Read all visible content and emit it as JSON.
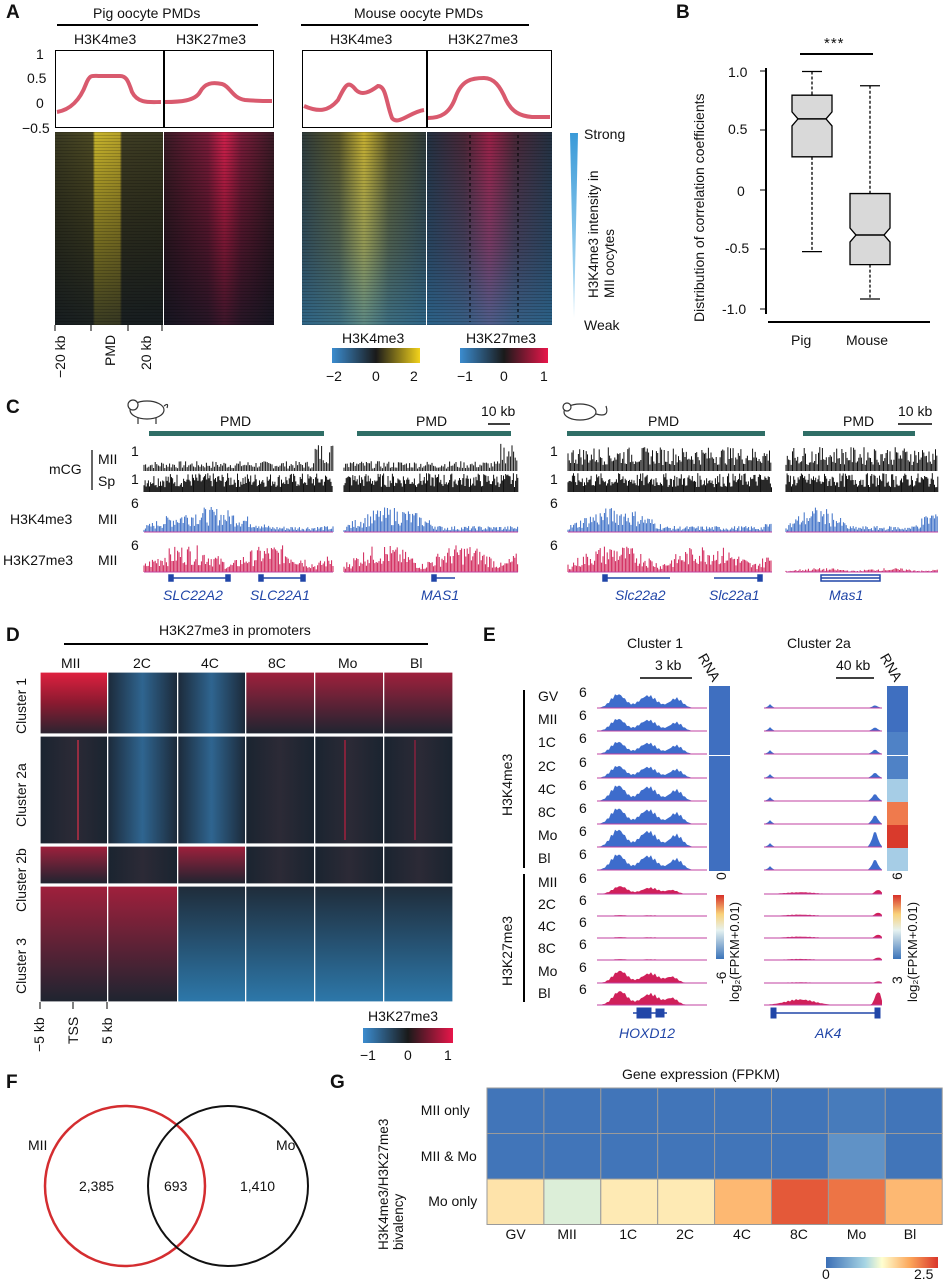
{
  "panels": {
    "A": "A",
    "B": "B",
    "C": "C",
    "D": "D",
    "E": "E",
    "F": "F",
    "G": "G"
  },
  "panelA": {
    "pig_title": "Pig oocyte PMDs",
    "mouse_title": "Mouse oocyte PMDs",
    "mark_k4": "H3K4me3",
    "mark_k27": "H3K27me3",
    "y_ticks": [
      "1",
      "0.5",
      "0",
      "−0.5"
    ],
    "x_labels": [
      "−20 kb",
      "PMD",
      "20 kb"
    ],
    "side_strong": "Strong",
    "side_weak": "Weak",
    "side_axis": "H3K4me3 intensity in MII oocytes",
    "cbar_k4_title": "H3K4me3",
    "cbar_k4_ticks": [
      "−2",
      "0",
      "2"
    ],
    "cbar_k27_title": "H3K27me3",
    "cbar_k27_ticks": [
      "−1",
      "0",
      "1"
    ]
  },
  "panelB": {
    "ylabel": "Distribution of correlation coefficients",
    "y_ticks": [
      "1.0",
      "0.5",
      "0",
      "-0.5",
      "-1.0"
    ],
    "signif": "***",
    "chart_data": {
      "type": "box",
      "categories": [
        "Pig",
        "Mouse"
      ],
      "ylim": [
        -1.1,
        1.1
      ],
      "boxes": [
        {
          "name": "Pig",
          "min": -0.52,
          "q1": 0.28,
          "median": 0.6,
          "q3": 0.8,
          "max": 1.0
        },
        {
          "name": "Mouse",
          "min": -0.92,
          "q1": -0.63,
          "median": -0.38,
          "q3": -0.03,
          "max": 0.88
        }
      ]
    }
  },
  "panelC": {
    "pmd": "PMD",
    "scale": "10 kb",
    "mcg": "mCG",
    "mii": "MII",
    "sp": "Sp",
    "k4": "H3K4me3",
    "k27": "H3K27me3",
    "v1": "1",
    "v6": "6",
    "genes_pig": [
      "SLC22A2",
      "SLC22A1",
      "MAS1"
    ],
    "genes_mouse": [
      "Slc22a2",
      "Slc22a1",
      "Mas1"
    ]
  },
  "panelD": {
    "title": "H3K27me3 in promoters",
    "stages": [
      "MII",
      "2C",
      "4C",
      "8C",
      "Mo",
      "Bl"
    ],
    "clusters": [
      "Cluster 1",
      "Cluster 2a",
      "Cluster 2b",
      "Cluster 3"
    ],
    "x_labels": [
      "−5 kb",
      "TSS",
      "5 kb"
    ],
    "cbar_title": "H3K27me3",
    "cbar_ticks": [
      "−1",
      "0",
      "1"
    ]
  },
  "panelE": {
    "cluster1": "Cluster 1",
    "cluster2a": "Cluster 2a",
    "scale1": "3 kb",
    "scale2": "40 kb",
    "rna": "RNA",
    "k4": "H3K4me3",
    "k27": "H3K27me3",
    "k4_stages": [
      "GV",
      "MII",
      "1C",
      "2C",
      "4C",
      "8C",
      "Mo",
      "Bl"
    ],
    "k27_stages": [
      "MII",
      "2C",
      "4C",
      "8C",
      "Mo",
      "Bl"
    ],
    "track_max": "6",
    "gene1": "HOXD12",
    "gene2": "AK4",
    "cb1_top": "0",
    "cb1_bot": "-6",
    "cb2_top": "6",
    "cb2_bot": "3",
    "cb_label": "log₂(FPKM+0.01)"
  },
  "panelF": {
    "chart_data": {
      "type": "venn",
      "sets": [
        {
          "name": "MII",
          "only": 2385
        },
        {
          "name": "Mo",
          "only": 1410
        }
      ],
      "overlap": 693
    },
    "label_mii": "MII",
    "label_mo": "Mo",
    "v_left": "2,385",
    "v_mid": "693",
    "v_right": "1,410"
  },
  "panelG": {
    "title": "Gene expression (FPKM)",
    "ylabel": "H3K4me3/H3K27me3 bivalency",
    "cbar_min": "0",
    "cbar_max": "2.5",
    "chart_data": {
      "type": "heatmap",
      "columns": [
        "GV",
        "MII",
        "1C",
        "2C",
        "4C",
        "8C",
        "Mo",
        "Bl"
      ],
      "rows": [
        "MII only",
        "MII & Mo",
        "Mo only"
      ],
      "values": [
        [
          0.05,
          0.05,
          0.05,
          0.05,
          0.05,
          0.05,
          0.1,
          0.05
        ],
        [
          0.05,
          0.05,
          0.05,
          0.05,
          0.05,
          0.05,
          0.3,
          0.05
        ],
        [
          1.45,
          1.1,
          1.4,
          1.4,
          1.75,
          2.3,
          2.15,
          1.75
        ]
      ],
      "range": [
        0,
        2.5
      ]
    }
  }
}
